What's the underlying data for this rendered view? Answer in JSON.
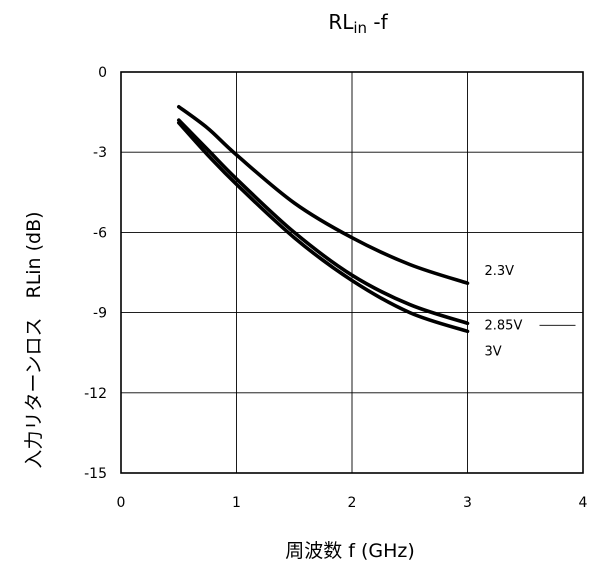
{
  "chart_data": {
    "type": "line",
    "title_main": "RL",
    "title_sub": "in",
    "title_suffix": " -f",
    "xlabel": "周波数  f (GHz)",
    "ylabel": "入力リターンロス　RLin (dB)",
    "xlim": [
      0,
      4
    ],
    "ylim": [
      -15,
      0
    ],
    "x_ticks": [
      0,
      1,
      2,
      3,
      4
    ],
    "y_ticks": [
      0,
      -3,
      -6,
      -9,
      -12,
      -15
    ],
    "x_tick_labels": [
      "0",
      "1",
      "2",
      "3",
      "4"
    ],
    "y_tick_labels": [
      "0",
      "-3",
      "-6",
      "-9",
      "-12",
      "-15"
    ],
    "grid": true,
    "series": [
      {
        "name": "2.3V",
        "x": [
          0.5,
          0.75,
          1.0,
          1.5,
          2.0,
          2.5,
          3.0
        ],
        "values": [
          -1.3,
          -2.1,
          -3.1,
          -4.9,
          -6.2,
          -7.2,
          -7.9
        ]
      },
      {
        "name": "2.85V",
        "x": [
          0.5,
          0.75,
          1.0,
          1.5,
          2.0,
          2.5,
          3.0
        ],
        "values": [
          -1.8,
          -2.9,
          -4.0,
          -6.0,
          -7.6,
          -8.7,
          -9.4
        ]
      },
      {
        "name": "3V",
        "x": [
          0.5,
          0.75,
          1.0,
          1.5,
          2.0,
          2.5,
          3.0
        ],
        "values": [
          -1.9,
          -3.1,
          -4.2,
          -6.2,
          -7.8,
          -9.0,
          -9.7
        ]
      }
    ]
  }
}
